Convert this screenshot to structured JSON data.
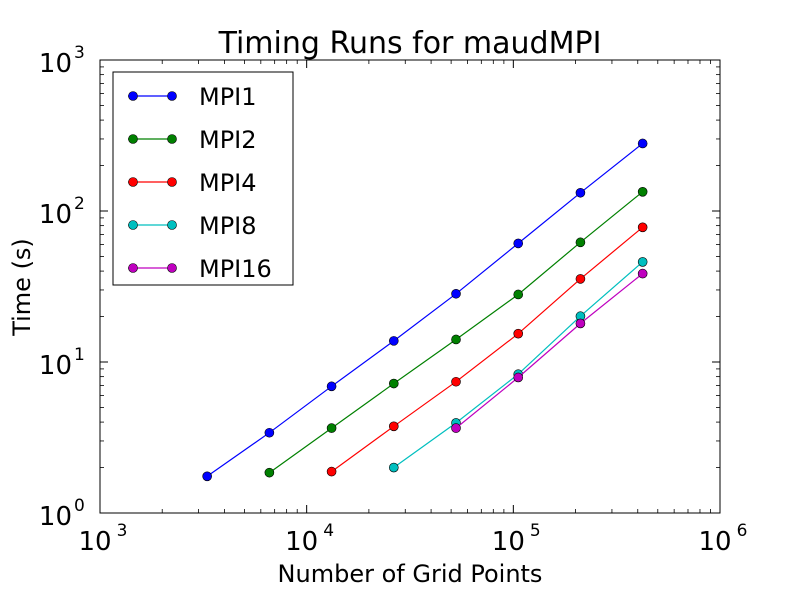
{
  "chart_data": {
    "type": "line",
    "title": "Timing Runs for maudMPI",
    "xlabel": "Number of Grid Points",
    "ylabel": "Time (s)",
    "xscale": "log",
    "yscale": "log",
    "xlim": [
      1000,
      1000000
    ],
    "ylim": [
      1,
      1000
    ],
    "x_ticks": [
      {
        "base": "10",
        "exp": "3",
        "value": 1000
      },
      {
        "base": "10",
        "exp": "4",
        "value": 10000
      },
      {
        "base": "10",
        "exp": "5",
        "value": 100000
      },
      {
        "base": "10",
        "exp": "6",
        "value": 1000000
      }
    ],
    "y_ticks": [
      {
        "base": "10",
        "exp": "0",
        "value": 1
      },
      {
        "base": "10",
        "exp": "1",
        "value": 10
      },
      {
        "base": "10",
        "exp": "2",
        "value": 100
      },
      {
        "base": "10",
        "exp": "3",
        "value": 1000
      }
    ],
    "legend_position": "top-left",
    "grid": false,
    "series": [
      {
        "name": "MPI1",
        "color": "#0000ff",
        "x": [
          3300,
          6600,
          13200,
          26400,
          52800,
          105600,
          211200,
          422400
        ],
        "y": [
          1.75,
          3.4,
          6.9,
          13.8,
          28.3,
          61,
          132,
          280
        ]
      },
      {
        "name": "MPI2",
        "color": "#008000",
        "x": [
          6600,
          13200,
          26400,
          52800,
          105600,
          211200,
          422400
        ],
        "y": [
          1.85,
          3.65,
          7.2,
          14.1,
          28,
          62,
          134
        ]
      },
      {
        "name": "MPI4",
        "color": "#ff0000",
        "x": [
          13200,
          26400,
          52800,
          105600,
          211200,
          422400
        ],
        "y": [
          1.88,
          3.75,
          7.4,
          15.4,
          35.5,
          78
        ]
      },
      {
        "name": "MPI8",
        "color": "#00bfbf",
        "x": [
          26400,
          52800,
          105600,
          211200,
          422400
        ],
        "y": [
          2.0,
          3.95,
          8.3,
          20.1,
          46
        ]
      },
      {
        "name": "MPI16",
        "color": "#bf00bf",
        "x": [
          52800,
          105600,
          211200,
          422400
        ],
        "y": [
          3.65,
          7.9,
          18,
          38.5
        ]
      }
    ]
  }
}
